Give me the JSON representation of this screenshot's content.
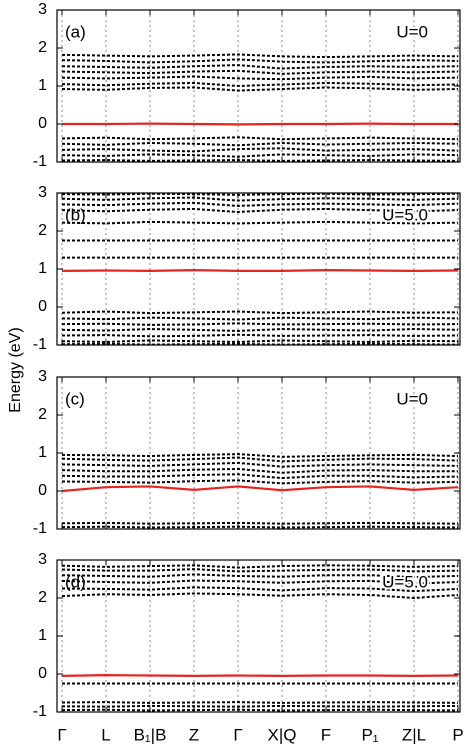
{
  "shared": {
    "y_label": "Energy (eV)",
    "categories": [
      "Γ",
      "L",
      "B₁|B",
      "Z",
      "Γ",
      "X|Q",
      "F",
      "P₁",
      "Z|L",
      "P"
    ]
  },
  "chart_data": [
    {
      "type": "line",
      "label": "(a)",
      "annotation": "U=0",
      "ylim": [
        -1,
        3
      ],
      "yticks": [
        -1,
        0,
        1,
        2,
        3
      ],
      "series": [
        {
          "color": "#000000",
          "style": "dashed",
          "values": [
            1.82,
            1.8,
            1.78,
            1.8,
            1.83,
            1.78,
            1.76,
            1.78,
            1.8,
            1.78
          ]
        },
        {
          "color": "#000000",
          "style": "dashed",
          "values": [
            1.68,
            1.66,
            1.62,
            1.65,
            1.7,
            1.64,
            1.62,
            1.65,
            1.68,
            1.66
          ]
        },
        {
          "color": "#000000",
          "style": "dashed",
          "values": [
            1.52,
            1.5,
            1.48,
            1.52,
            1.55,
            1.46,
            1.5,
            1.52,
            1.5,
            1.52
          ]
        },
        {
          "color": "#000000",
          "style": "dashed",
          "values": [
            1.38,
            1.36,
            1.34,
            1.38,
            1.4,
            1.32,
            1.36,
            1.38,
            1.36,
            1.38
          ]
        },
        {
          "color": "#000000",
          "style": "dashed",
          "values": [
            1.22,
            1.2,
            1.22,
            1.25,
            1.2,
            1.18,
            1.22,
            1.24,
            1.2,
            1.22
          ]
        },
        {
          "color": "#000000",
          "style": "dashed",
          "values": [
            1.05,
            1.02,
            1.06,
            1.08,
            1.0,
            1.04,
            1.08,
            1.06,
            1.02,
            1.04
          ]
        },
        {
          "color": "#000000",
          "style": "dashed",
          "values": [
            0.92,
            0.9,
            0.95,
            0.96,
            0.88,
            0.92,
            0.96,
            0.94,
            0.9,
            0.92
          ]
        },
        {
          "color": "#000000",
          "style": "dashed",
          "values": [
            -0.38,
            -0.36,
            -0.4,
            -0.38,
            -0.35,
            -0.4,
            -0.38,
            -0.36,
            -0.38,
            -0.4
          ]
        },
        {
          "color": "#000000",
          "style": "dashed",
          "values": [
            -0.52,
            -0.55,
            -0.5,
            -0.52,
            -0.56,
            -0.5,
            -0.54,
            -0.52,
            -0.5,
            -0.52
          ]
        },
        {
          "color": "#000000",
          "style": "dashed",
          "values": [
            -0.68,
            -0.66,
            -0.7,
            -0.72,
            -0.66,
            -0.64,
            -0.7,
            -0.68,
            -0.66,
            -0.7
          ]
        },
        {
          "color": "#000000",
          "style": "dashed",
          "values": [
            -0.82,
            -0.84,
            -0.8,
            -0.82,
            -0.86,
            -0.8,
            -0.82,
            -0.84,
            -0.8,
            -0.82
          ]
        },
        {
          "color": "#000000",
          "style": "dashed",
          "values": [
            -0.96,
            -0.95,
            -0.97,
            -0.96,
            -0.95,
            -0.97,
            -0.96,
            -0.95,
            -0.96,
            -0.97
          ]
        },
        {
          "color": "#e3261f",
          "style": "solid",
          "values": [
            0,
            0,
            0.01,
            0,
            -0.01,
            0,
            0,
            0.01,
            0,
            0
          ]
        }
      ]
    },
    {
      "type": "line",
      "label": "(b)",
      "annotation": "U=5.0",
      "ylim": [
        -1,
        3
      ],
      "yticks": [
        -1,
        0,
        1,
        2,
        3
      ],
      "series": [
        {
          "color": "#000000",
          "style": "dashed",
          "values": [
            2.97,
            2.96,
            2.98,
            2.97,
            2.95,
            2.97,
            2.98,
            2.96,
            2.97,
            2.98
          ]
        },
        {
          "color": "#000000",
          "style": "dashed",
          "values": [
            2.85,
            2.82,
            2.86,
            2.88,
            2.8,
            2.84,
            2.86,
            2.85,
            2.82,
            2.85
          ]
        },
        {
          "color": "#000000",
          "style": "dashed",
          "values": [
            2.7,
            2.68,
            2.72,
            2.74,
            2.66,
            2.7,
            2.72,
            2.7,
            2.68,
            2.72
          ]
        },
        {
          "color": "#000000",
          "style": "dashed",
          "values": [
            2.55,
            2.52,
            2.56,
            2.58,
            2.5,
            2.56,
            2.58,
            2.55,
            2.52,
            2.55
          ]
        },
        {
          "color": "#000000",
          "style": "dashed",
          "values": [
            2.22,
            2.2,
            2.24,
            2.22,
            2.2,
            2.22,
            2.24,
            2.22,
            2.2,
            2.22
          ]
        },
        {
          "color": "#000000",
          "style": "dashed",
          "values": [
            1.75,
            1.75,
            1.75,
            1.75,
            1.75,
            1.75,
            1.75,
            1.75,
            1.75,
            1.75
          ]
        },
        {
          "color": "#000000",
          "style": "dashed",
          "values": [
            1.3,
            1.3,
            1.3,
            1.3,
            1.3,
            1.3,
            1.3,
            1.3,
            1.3,
            1.3
          ]
        },
        {
          "color": "#000000",
          "style": "dashed",
          "values": [
            -0.15,
            -0.12,
            -0.16,
            -0.14,
            -0.12,
            -0.16,
            -0.14,
            -0.12,
            -0.15,
            -0.14
          ]
        },
        {
          "color": "#000000",
          "style": "dashed",
          "values": [
            -0.3,
            -0.32,
            -0.28,
            -0.3,
            -0.33,
            -0.28,
            -0.3,
            -0.32,
            -0.28,
            -0.3
          ]
        },
        {
          "color": "#000000",
          "style": "dashed",
          "values": [
            -0.45,
            -0.44,
            -0.47,
            -0.46,
            -0.43,
            -0.46,
            -0.45,
            -0.44,
            -0.46,
            -0.45
          ]
        },
        {
          "color": "#000000",
          "style": "dashed",
          "values": [
            -0.6,
            -0.62,
            -0.58,
            -0.6,
            -0.63,
            -0.58,
            -0.6,
            -0.62,
            -0.58,
            -0.6
          ]
        },
        {
          "color": "#000000",
          "style": "dashed",
          "values": [
            -0.75,
            -0.74,
            -0.77,
            -0.76,
            -0.73,
            -0.76,
            -0.75,
            -0.74,
            -0.76,
            -0.75
          ]
        },
        {
          "color": "#000000",
          "style": "dashed",
          "values": [
            -0.9,
            -0.92,
            -0.88,
            -0.9,
            -0.92,
            -0.88,
            -0.9,
            -0.92,
            -0.89,
            -0.9
          ]
        },
        {
          "color": "#000000",
          "style": "dashed",
          "values": [
            -0.98,
            -0.97,
            -0.99,
            -0.98,
            -0.97,
            -0.99,
            -0.98,
            -0.97,
            -0.98,
            -0.99
          ]
        },
        {
          "color": "#e3261f",
          "style": "solid",
          "values": [
            0.95,
            0.96,
            0.95,
            0.97,
            0.95,
            0.95,
            0.97,
            0.96,
            0.95,
            0.96
          ]
        }
      ]
    },
    {
      "type": "line",
      "label": "(c)",
      "annotation": "U=0",
      "ylim": [
        -1,
        3
      ],
      "yticks": [
        -1,
        0,
        1,
        2,
        3
      ],
      "series": [
        {
          "color": "#000000",
          "style": "dashed",
          "values": [
            0.95,
            0.94,
            0.92,
            0.95,
            0.97,
            0.9,
            0.92,
            0.94,
            0.95,
            0.92
          ]
        },
        {
          "color": "#000000",
          "style": "dashed",
          "values": [
            0.85,
            0.82,
            0.8,
            0.84,
            0.88,
            0.78,
            0.82,
            0.85,
            0.84,
            0.8
          ]
        },
        {
          "color": "#000000",
          "style": "dashed",
          "values": [
            0.7,
            0.68,
            0.66,
            0.7,
            0.74,
            0.64,
            0.68,
            0.7,
            0.68,
            0.66
          ]
        },
        {
          "color": "#000000",
          "style": "dashed",
          "values": [
            0.55,
            0.52,
            0.52,
            0.56,
            0.58,
            0.48,
            0.54,
            0.55,
            0.52,
            0.52
          ]
        },
        {
          "color": "#000000",
          "style": "dashed",
          "values": [
            0.4,
            0.38,
            0.38,
            0.42,
            0.44,
            0.34,
            0.4,
            0.4,
            0.36,
            0.38
          ]
        },
        {
          "color": "#000000",
          "style": "dashed",
          "values": [
            0.25,
            0.24,
            0.22,
            0.26,
            0.28,
            0.2,
            0.24,
            0.26,
            0.22,
            0.24
          ]
        },
        {
          "color": "#000000",
          "style": "dashed",
          "values": [
            -0.85,
            -0.84,
            -0.86,
            -0.85,
            -0.84,
            -0.86,
            -0.85,
            -0.84,
            -0.85,
            -0.86
          ]
        },
        {
          "color": "#000000",
          "style": "dashed",
          "values": [
            -0.95,
            -0.94,
            -0.96,
            -0.95,
            -0.94,
            -0.96,
            -0.95,
            -0.94,
            -0.95,
            -0.96
          ]
        },
        {
          "color": "#e3261f",
          "style": "solid",
          "values": [
            0.0,
            0.1,
            0.12,
            0.03,
            0.12,
            0.02,
            0.1,
            0.12,
            0.03,
            0.1
          ]
        }
      ]
    },
    {
      "type": "line",
      "label": "(d)",
      "annotation": "U=5.0",
      "ylim": [
        -1,
        3
      ],
      "yticks": [
        -1,
        0,
        1,
        2,
        3
      ],
      "series": [
        {
          "color": "#000000",
          "style": "dashed",
          "values": [
            2.85,
            2.82,
            2.84,
            2.86,
            2.8,
            2.84,
            2.86,
            2.85,
            2.82,
            2.84
          ]
        },
        {
          "color": "#000000",
          "style": "dashed",
          "values": [
            2.75,
            2.72,
            2.72,
            2.76,
            2.7,
            2.72,
            2.74,
            2.75,
            2.7,
            2.72
          ]
        },
        {
          "color": "#000000",
          "style": "dashed",
          "values": [
            2.6,
            2.58,
            2.56,
            2.62,
            2.58,
            2.56,
            2.6,
            2.6,
            2.55,
            2.58
          ]
        },
        {
          "color": "#000000",
          "style": "dashed",
          "values": [
            2.45,
            2.42,
            2.4,
            2.46,
            2.44,
            2.4,
            2.44,
            2.45,
            2.38,
            2.42
          ]
        },
        {
          "color": "#000000",
          "style": "dashed",
          "values": [
            2.25,
            2.24,
            2.22,
            2.28,
            2.26,
            2.2,
            2.26,
            2.25,
            2.18,
            2.24
          ]
        },
        {
          "color": "#000000",
          "style": "dashed",
          "values": [
            2.05,
            2.1,
            2.08,
            2.12,
            2.1,
            2.06,
            2.1,
            2.08,
            2.0,
            2.08
          ]
        },
        {
          "color": "#000000",
          "style": "dashed",
          "values": [
            -0.25,
            -0.25,
            -0.25,
            -0.25,
            -0.25,
            -0.25,
            -0.25,
            -0.25,
            -0.25,
            -0.25
          ]
        },
        {
          "color": "#000000",
          "style": "dashed",
          "values": [
            -0.75,
            -0.74,
            -0.76,
            -0.75,
            -0.74,
            -0.76,
            -0.75,
            -0.74,
            -0.75,
            -0.76
          ]
        },
        {
          "color": "#000000",
          "style": "dashed",
          "values": [
            -0.85,
            -0.86,
            -0.84,
            -0.85,
            -0.86,
            -0.84,
            -0.85,
            -0.86,
            -0.85,
            -0.84
          ]
        },
        {
          "color": "#000000",
          "style": "dashed",
          "values": [
            -0.95,
            -0.94,
            -0.96,
            -0.95,
            -0.94,
            -0.96,
            -0.95,
            -0.94,
            -0.95,
            -0.96
          ]
        },
        {
          "color": "#e3261f",
          "style": "solid",
          "values": [
            -0.05,
            -0.03,
            -0.04,
            -0.05,
            -0.04,
            -0.05,
            -0.04,
            -0.04,
            -0.05,
            -0.04
          ]
        }
      ]
    }
  ]
}
